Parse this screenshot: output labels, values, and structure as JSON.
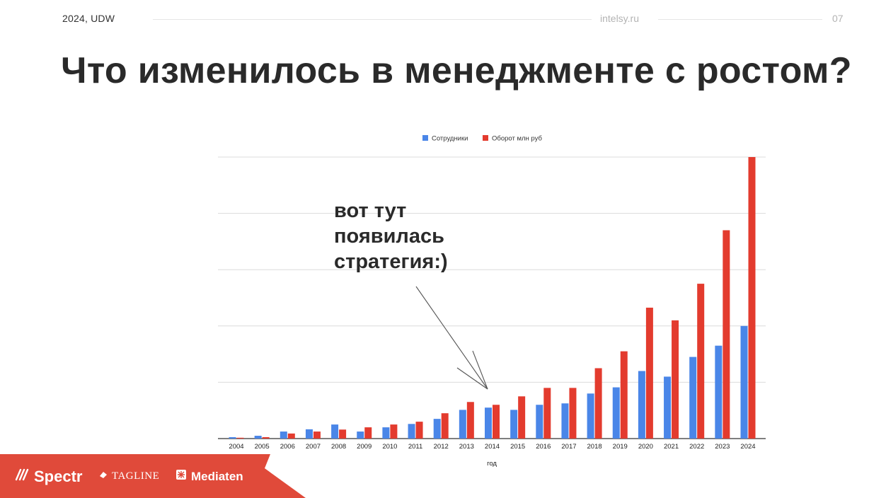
{
  "header": {
    "left": "2024,  UDW",
    "center": "intelsy.ru",
    "page_number": "07"
  },
  "slide_title": "Что изменилось в менеджменте с ростом?",
  "annotation": {
    "lines": [
      "вот тут",
      "появилась",
      "стратегия:)"
    ]
  },
  "footer": {
    "logos": [
      "Spectr",
      "TAGLINE",
      "Mediaten"
    ],
    "accent_color": "#e04a3a"
  },
  "chart_data": {
    "type": "bar",
    "xlabel": "год",
    "ylabel": "",
    "ylim": [
      0,
      100
    ],
    "grid": true,
    "legend_position": "top-center",
    "categories": [
      "2004",
      "2005",
      "2006",
      "2007",
      "2008",
      "2009",
      "2010",
      "2011",
      "2012",
      "2013",
      "2014",
      "2015",
      "2016",
      "2017",
      "2018",
      "2019",
      "2020",
      "2021",
      "2022",
      "2023",
      "2024"
    ],
    "series": [
      {
        "name": "Сотрудники",
        "color": "#4a86e8",
        "values": [
          0.5,
          1,
          2.5,
          3.3,
          5,
          2.5,
          4,
          5.2,
          7,
          10.2,
          11,
          10.2,
          12,
          12.5,
          16,
          18.2,
          24,
          22,
          29,
          33,
          40
        ]
      },
      {
        "name": "Оборот млн руб",
        "color": "#e33b2e",
        "values": [
          0.3,
          0.5,
          1.8,
          2.5,
          3.2,
          4,
          5,
          6,
          9,
          13,
          12,
          15,
          18,
          18,
          25,
          31,
          46.5,
          42,
          55,
          74,
          100
        ]
      }
    ]
  }
}
